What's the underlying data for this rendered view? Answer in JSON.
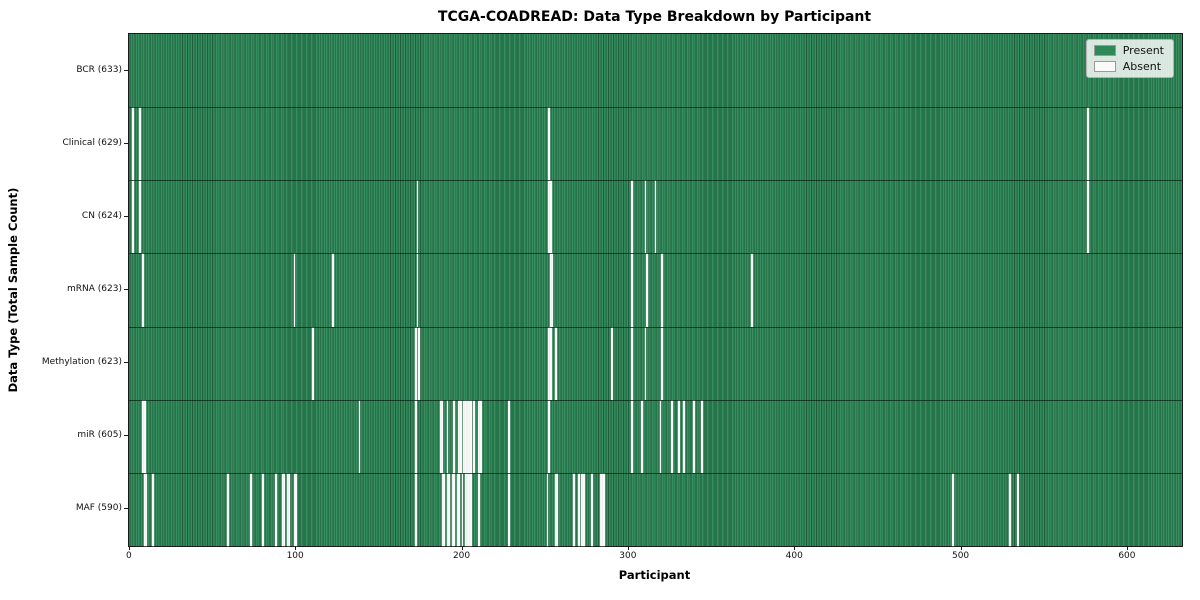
{
  "figure": {
    "title": "TCGA-COADREAD: Data Type Breakdown by Participant",
    "xlabel": "Participant",
    "ylabel": "Data Type (Total Sample Count)"
  },
  "legend": {
    "items": [
      {
        "label": "Present",
        "color": "#2e8857"
      },
      {
        "label": "Absent",
        "color": "#fafafa"
      }
    ]
  },
  "chart_data": {
    "type": "heatmap",
    "title": "TCGA-COADREAD: Data Type Breakdown by Participant",
    "xlabel": "Participant",
    "ylabel": "Data Type (Total Sample Count)",
    "legend_position": "upper right",
    "legend_entries": [
      "Present",
      "Absent"
    ],
    "colors": {
      "present": "#2e8857",
      "absent": "#fafafa"
    },
    "n_participants": 633,
    "x_ticks": [
      0,
      100,
      200,
      300,
      400,
      500,
      600
    ],
    "xlim": [
      -0.5,
      632.5
    ],
    "grid": false,
    "rows": [
      {
        "data_type": "BCR",
        "label": "BCR (633)",
        "count": 633,
        "absent_participants": []
      },
      {
        "data_type": "Clinical",
        "label": "Clinical (629)",
        "count": 629,
        "absent_participants": [
          2,
          6,
          252,
          576
        ]
      },
      {
        "data_type": "CN",
        "label": "CN (624)",
        "count": 624,
        "absent_participants": [
          2,
          6,
          173,
          252,
          253,
          302,
          310,
          316,
          576
        ]
      },
      {
        "data_type": "mRNA",
        "label": "mRNA (623)",
        "count": 623,
        "absent_participants": [
          8,
          99,
          122,
          173,
          253,
          254,
          302,
          311,
          320,
          374
        ]
      },
      {
        "data_type": "Methylation",
        "label": "Methylation (623)",
        "count": 623,
        "absent_participants": [
          110,
          172,
          174,
          252,
          253,
          256,
          290,
          302,
          310,
          320
        ]
      },
      {
        "data_type": "miR",
        "label": "miR (605)",
        "count": 605,
        "absent_participants": [
          8,
          9,
          138,
          172,
          187,
          188,
          191,
          195,
          198,
          199,
          201,
          202,
          203,
          204,
          205,
          207,
          210,
          211,
          228,
          252,
          302,
          308,
          319,
          326,
          330,
          333,
          339,
          344
        ]
      },
      {
        "data_type": "MAF",
        "label": "MAF (590)",
        "count": 590,
        "absent_participants": [
          9,
          10,
          14,
          59,
          73,
          80,
          88,
          92,
          93,
          95,
          96,
          99,
          100,
          172,
          188,
          189,
          191,
          192,
          194,
          195,
          197,
          198,
          200,
          202,
          203,
          204,
          205,
          210,
          228,
          251,
          256,
          257,
          267,
          270,
          272,
          273,
          278,
          283,
          284,
          285,
          495,
          529,
          534
        ]
      }
    ]
  }
}
